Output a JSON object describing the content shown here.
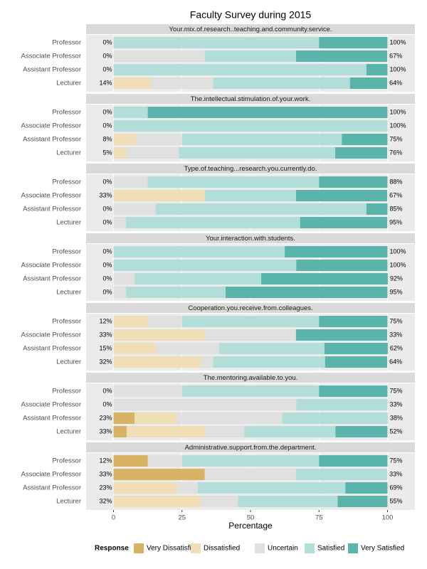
{
  "chart_data": {
    "type": "bar",
    "title": "Faculty Survey during 2015",
    "xlabel": "Percentage",
    "legend_title": "Response",
    "categories": [
      "Professor",
      "Associate Professor",
      "Assistant Professor",
      "Lecturer"
    ],
    "responses": [
      {
        "name": "Very Dissatisfied",
        "color": "#d8b365"
      },
      {
        "name": "Dissatisfied",
        "color": "#f0dfb6"
      },
      {
        "name": "Uncertain",
        "color": "#e0e0e0"
      },
      {
        "name": "Satisfied",
        "color": "#b3ddd8"
      },
      {
        "name": "Very Satisfied",
        "color": "#5ab4ac"
      }
    ],
    "xlim": [
      -10,
      110
    ],
    "xticks": [
      0,
      25,
      50,
      75,
      100
    ],
    "grid": true,
    "facets": [
      {
        "title": "Your.mix.of.research..teaching.and.community.service.",
        "values": [
          [
            0,
            0,
            0,
            75,
            25
          ],
          [
            0,
            0,
            33.3,
            33.3,
            33.3
          ],
          [
            0,
            0,
            0,
            92.3,
            7.7
          ],
          [
            0,
            13.6,
            22.7,
            50,
            13.6
          ]
        ],
        "left_labels": [
          "0%",
          "0%",
          "0%",
          "14%"
        ],
        "right_labels": [
          "100%",
          "67%",
          "100%",
          "64%"
        ]
      },
      {
        "title": "The.intellectual.stimulation.of.your.work.",
        "values": [
          [
            0,
            0,
            0,
            12.5,
            87.5
          ],
          [
            0,
            0,
            0,
            100,
            0
          ],
          [
            0,
            8.3,
            16.7,
            58.3,
            16.7
          ],
          [
            0,
            4.8,
            19,
            57.1,
            19
          ]
        ],
        "left_labels": [
          "0%",
          "0%",
          "8%",
          "5%"
        ],
        "right_labels": [
          "100%",
          "100%",
          "75%",
          "76%"
        ]
      },
      {
        "title": "Type.of.teaching...research.you.currently.do.",
        "values": [
          [
            0,
            0,
            12.5,
            62.5,
            25
          ],
          [
            0,
            33.3,
            0,
            33.3,
            33.3
          ],
          [
            0,
            0,
            15.4,
            76.9,
            7.7
          ],
          [
            0,
            0,
            4.5,
            63.6,
            31.8
          ]
        ],
        "left_labels": [
          "0%",
          "33%",
          "0%",
          "0%"
        ],
        "right_labels": [
          "88%",
          "67%",
          "85%",
          "95%"
        ]
      },
      {
        "title": "Your.interaction.with.students.",
        "values": [
          [
            0,
            0,
            0,
            62.5,
            37.5
          ],
          [
            0,
            0,
            0,
            66.7,
            33.3
          ],
          [
            0,
            0,
            7.7,
            46.2,
            46.2
          ],
          [
            0,
            0,
            4.5,
            36.4,
            59.1
          ]
        ],
        "left_labels": [
          "0%",
          "0%",
          "0%",
          "0%"
        ],
        "right_labels": [
          "100%",
          "100%",
          "92%",
          "95%"
        ]
      },
      {
        "title": "Cooperation.you.receive.from.colleagues.",
        "values": [
          [
            0,
            12.5,
            12.5,
            50,
            25
          ],
          [
            0,
            33.3,
            33.3,
            0,
            33.3
          ],
          [
            0,
            15.4,
            23.1,
            38.5,
            23.1
          ],
          [
            0,
            31.8,
            4.5,
            40.9,
            22.7
          ]
        ],
        "left_labels": [
          "12%",
          "33%",
          "15%",
          "32%"
        ],
        "right_labels": [
          "75%",
          "33%",
          "62%",
          "64%"
        ]
      },
      {
        "title": "The.mentoring.available.to.you.",
        "values": [
          [
            0,
            0,
            25,
            50,
            25
          ],
          [
            0,
            0,
            66.7,
            33.3,
            0
          ],
          [
            7.7,
            15.4,
            38.5,
            38.5,
            0
          ],
          [
            4.8,
            28.6,
            14.3,
            33.3,
            19
          ]
        ],
        "left_labels": [
          "0%",
          "0%",
          "23%",
          "33%"
        ],
        "right_labels": [
          "75%",
          "33%",
          "38%",
          "52%"
        ]
      },
      {
        "title": "Administrative.support.from.the.department.",
        "values": [
          [
            12.5,
            0,
            12.5,
            50,
            25
          ],
          [
            33.3,
            0,
            33.3,
            33.3,
            0
          ],
          [
            0,
            23.1,
            7.7,
            53.8,
            15.4
          ],
          [
            0,
            31.8,
            13.6,
            36.4,
            18.2
          ]
        ],
        "left_labels": [
          "12%",
          "33%",
          "23%",
          "32%"
        ],
        "right_labels": [
          "75%",
          "33%",
          "69%",
          "55%"
        ]
      }
    ]
  }
}
